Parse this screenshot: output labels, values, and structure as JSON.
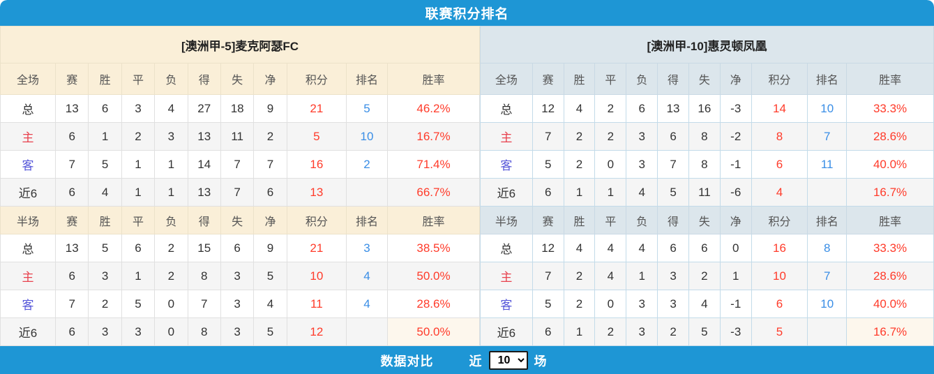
{
  "header": {
    "title": "联赛积分排名"
  },
  "columns": {
    "full_label": "全场",
    "half_label": "半场",
    "stats": [
      "赛",
      "胜",
      "平",
      "负",
      "得",
      "失",
      "净",
      "积分",
      "排名",
      "胜率"
    ]
  },
  "teams": [
    {
      "name": "[澳洲甲-5]麦克阿瑟FC",
      "full": [
        {
          "label": "总",
          "vals": [
            13,
            6,
            3,
            4,
            27,
            18,
            9
          ],
          "points": "21",
          "rank": "5",
          "rate": "46.2%"
        },
        {
          "label": "主",
          "vals": [
            6,
            1,
            2,
            3,
            13,
            11,
            2
          ],
          "points": "5",
          "rank": "10",
          "rate": "16.7%"
        },
        {
          "label": "客",
          "vals": [
            7,
            5,
            1,
            1,
            14,
            7,
            7
          ],
          "points": "16",
          "rank": "2",
          "rate": "71.4%"
        },
        {
          "label": "近6",
          "vals": [
            6,
            4,
            1,
            1,
            13,
            7,
            6
          ],
          "points": "13",
          "rank": "",
          "rate": "66.7%"
        }
      ],
      "half": [
        {
          "label": "总",
          "vals": [
            13,
            5,
            6,
            2,
            15,
            6,
            9
          ],
          "points": "21",
          "rank": "3",
          "rate": "38.5%"
        },
        {
          "label": "主",
          "vals": [
            6,
            3,
            1,
            2,
            8,
            3,
            5
          ],
          "points": "10",
          "rank": "4",
          "rate": "50.0%"
        },
        {
          "label": "客",
          "vals": [
            7,
            2,
            5,
            0,
            7,
            3,
            4
          ],
          "points": "11",
          "rank": "4",
          "rate": "28.6%"
        },
        {
          "label": "近6",
          "vals": [
            6,
            3,
            3,
            0,
            8,
            3,
            5
          ],
          "points": "12",
          "rank": "",
          "rate": "50.0%"
        }
      ]
    },
    {
      "name": "[澳洲甲-10]惠灵顿凤凰",
      "full": [
        {
          "label": "总",
          "vals": [
            12,
            4,
            2,
            6,
            13,
            16,
            -3
          ],
          "points": "14",
          "rank": "10",
          "rate": "33.3%"
        },
        {
          "label": "主",
          "vals": [
            7,
            2,
            2,
            3,
            6,
            8,
            -2
          ],
          "points": "8",
          "rank": "7",
          "rate": "28.6%"
        },
        {
          "label": "客",
          "vals": [
            5,
            2,
            0,
            3,
            7,
            8,
            -1
          ],
          "points": "6",
          "rank": "11",
          "rate": "40.0%"
        },
        {
          "label": "近6",
          "vals": [
            6,
            1,
            1,
            4,
            5,
            11,
            -6
          ],
          "points": "4",
          "rank": "",
          "rate": "16.7%"
        }
      ],
      "half": [
        {
          "label": "总",
          "vals": [
            12,
            4,
            4,
            4,
            6,
            6,
            0
          ],
          "points": "16",
          "rank": "8",
          "rate": "33.3%"
        },
        {
          "label": "主",
          "vals": [
            7,
            2,
            4,
            1,
            3,
            2,
            1
          ],
          "points": "10",
          "rank": "7",
          "rate": "28.6%"
        },
        {
          "label": "客",
          "vals": [
            5,
            2,
            0,
            3,
            3,
            4,
            -1
          ],
          "points": "6",
          "rank": "10",
          "rate": "40.0%"
        },
        {
          "label": "近6",
          "vals": [
            6,
            1,
            2,
            3,
            2,
            5,
            -3
          ],
          "points": "5",
          "rank": "",
          "rate": "16.7%"
        }
      ]
    }
  ],
  "footer": {
    "compare_label": "数据对比",
    "recent_label": "近",
    "matches_label": "场",
    "select_value": "10"
  },
  "colors": {
    "bar_blue": "#1e96d5",
    "left_header_bg": "#faefd8",
    "right_header_bg": "#dce6ec",
    "stat_red": "#ff3b2a",
    "rank_blue": "#3a8ee6",
    "home_red": "#e8414d",
    "away_blue": "#5556d9"
  }
}
